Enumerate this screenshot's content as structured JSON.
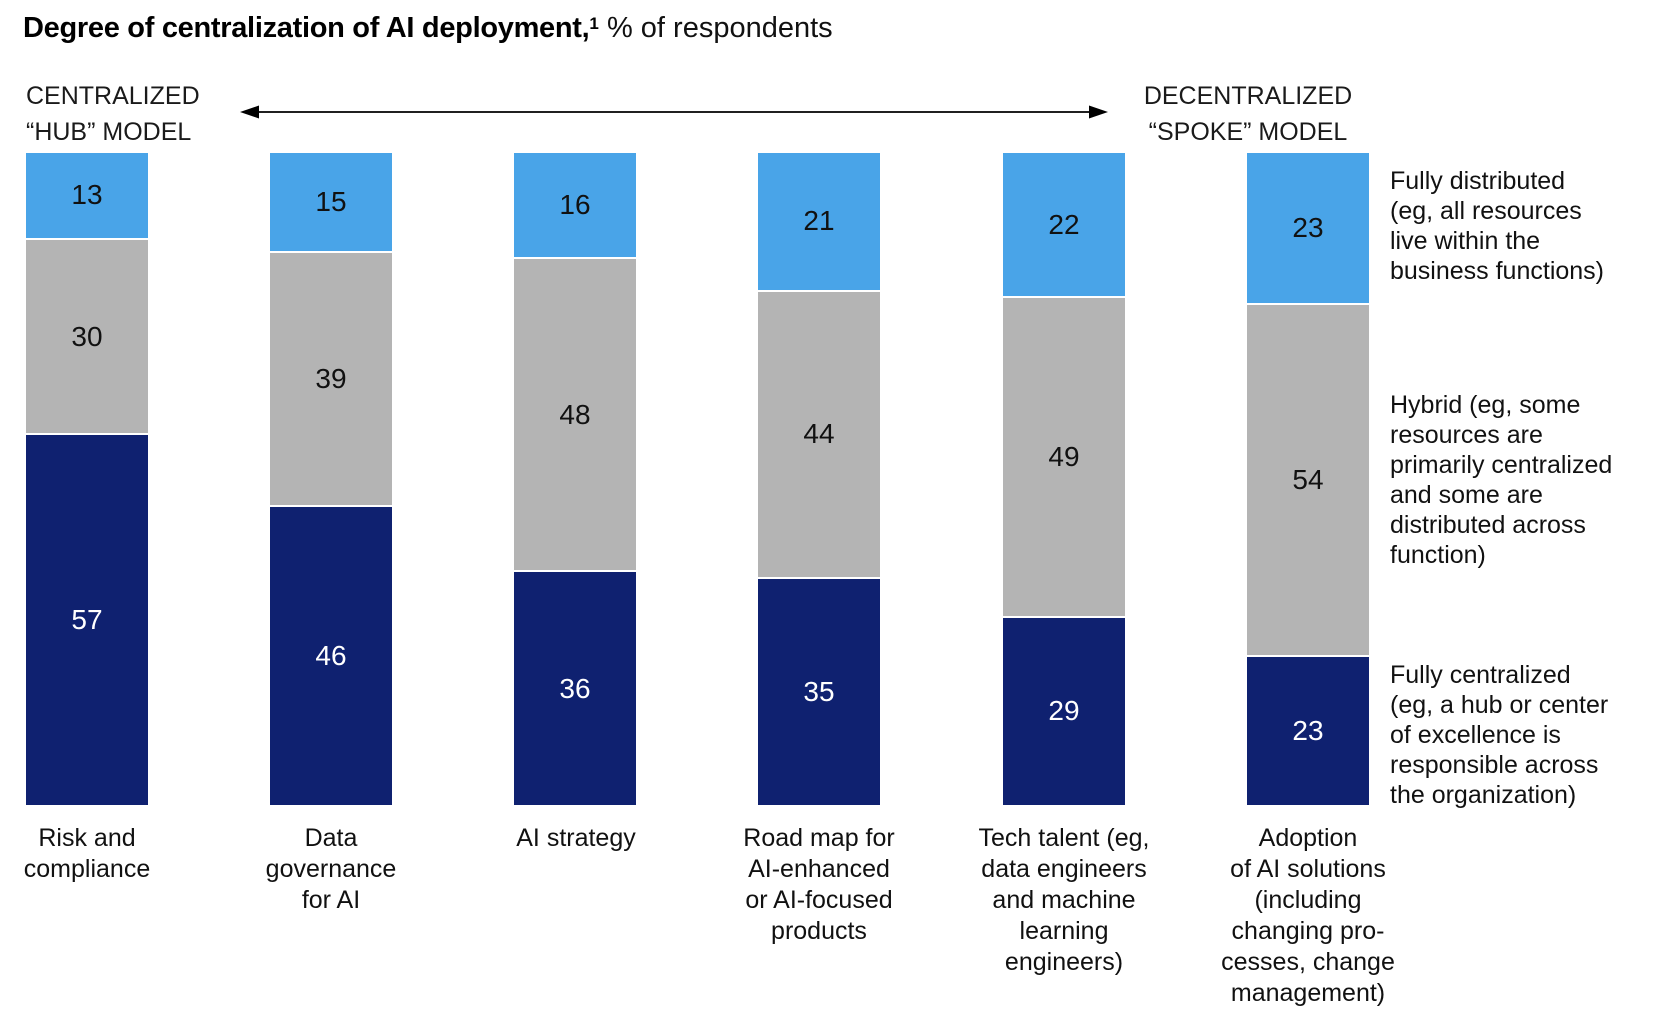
{
  "title": {
    "bold": "Degree of centralization of AI deployment,",
    "footnote_marker": "1",
    "regular": " % of respondents"
  },
  "axis": {
    "left_label": "CENTRALIZED\n“HUB” MODEL",
    "right_label": "DECENTRALIZED\n“SPOKE” MODEL"
  },
  "colors": {
    "fully_distributed_blue": "#49A4E8",
    "hybrid_gray": "#B4B4B4",
    "fully_centralized_navy": "#0F2170",
    "background": "#FFFFFF",
    "text": "#111111"
  },
  "chart_data": {
    "type": "bar",
    "variant": "stacked-100-percent-column",
    "title": "Degree of centralization of AI deployment, % of respondents",
    "unit": "% of respondents",
    "ylim": [
      0,
      100
    ],
    "grid": false,
    "value_labels": "inside-center",
    "legend_position": "right",
    "categories": [
      "Risk and compliance",
      "Data governance for AI",
      "AI strategy",
      "Road map for AI-enhanced or AI-focused products",
      "Tech talent (eg, data engineers and machine learning engineers)",
      "Adoption of AI solutions (including changing processes, change management)"
    ],
    "category_labels_display": [
      "Risk and\ncompliance",
      "Data\ngovernance\nfor AI",
      "AI strategy",
      "Road map for\nAI-enhanced\nor AI-focused\nproducts",
      "Tech talent (eg,\ndata engineers\nand machine\nlearning\nengineers)",
      "Adoption\nof AI solutions\n(including\nchanging pro-\ncesses, change\nmanagement)"
    ],
    "series": [
      {
        "name": "Fully distributed",
        "color": "#49A4E8",
        "values": [
          13,
          15,
          16,
          21,
          22,
          23
        ]
      },
      {
        "name": "Hybrid",
        "color": "#B4B4B4",
        "values": [
          30,
          39,
          48,
          44,
          49,
          54
        ]
      },
      {
        "name": "Fully centralized",
        "color": "#0F2170",
        "values": [
          57,
          46,
          36,
          35,
          29,
          23
        ]
      }
    ],
    "legend": [
      "Fully distributed\n(eg, all resources\nlive within the\nbusiness functions)",
      "Hybrid (eg, some\nresources are\nprimarily centralized\nand some are\ndistributed across\nfunction)",
      "Fully centralized\n(eg, a hub or center\nof excellence is\nresponsible across\nthe organization)"
    ]
  }
}
